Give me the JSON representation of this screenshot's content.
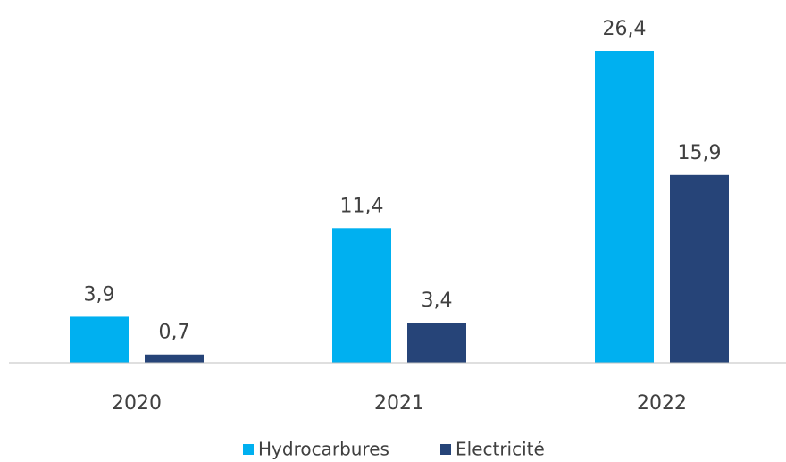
{
  "chart_data": {
    "type": "bar",
    "categories": [
      "2020",
      "2021",
      "2022"
    ],
    "series": [
      {
        "name": "Hydrocarbures",
        "color": "#00b0f0",
        "values": [
          3.9,
          11.4,
          26.4
        ],
        "value_labels": [
          "3,9",
          "11,4",
          "26,4"
        ]
      },
      {
        "name": "Electricité",
        "color": "#264478",
        "values": [
          0.7,
          3.4,
          15.9
        ],
        "value_labels": [
          "0,7",
          "3,4",
          "15,9"
        ]
      }
    ]
  }
}
